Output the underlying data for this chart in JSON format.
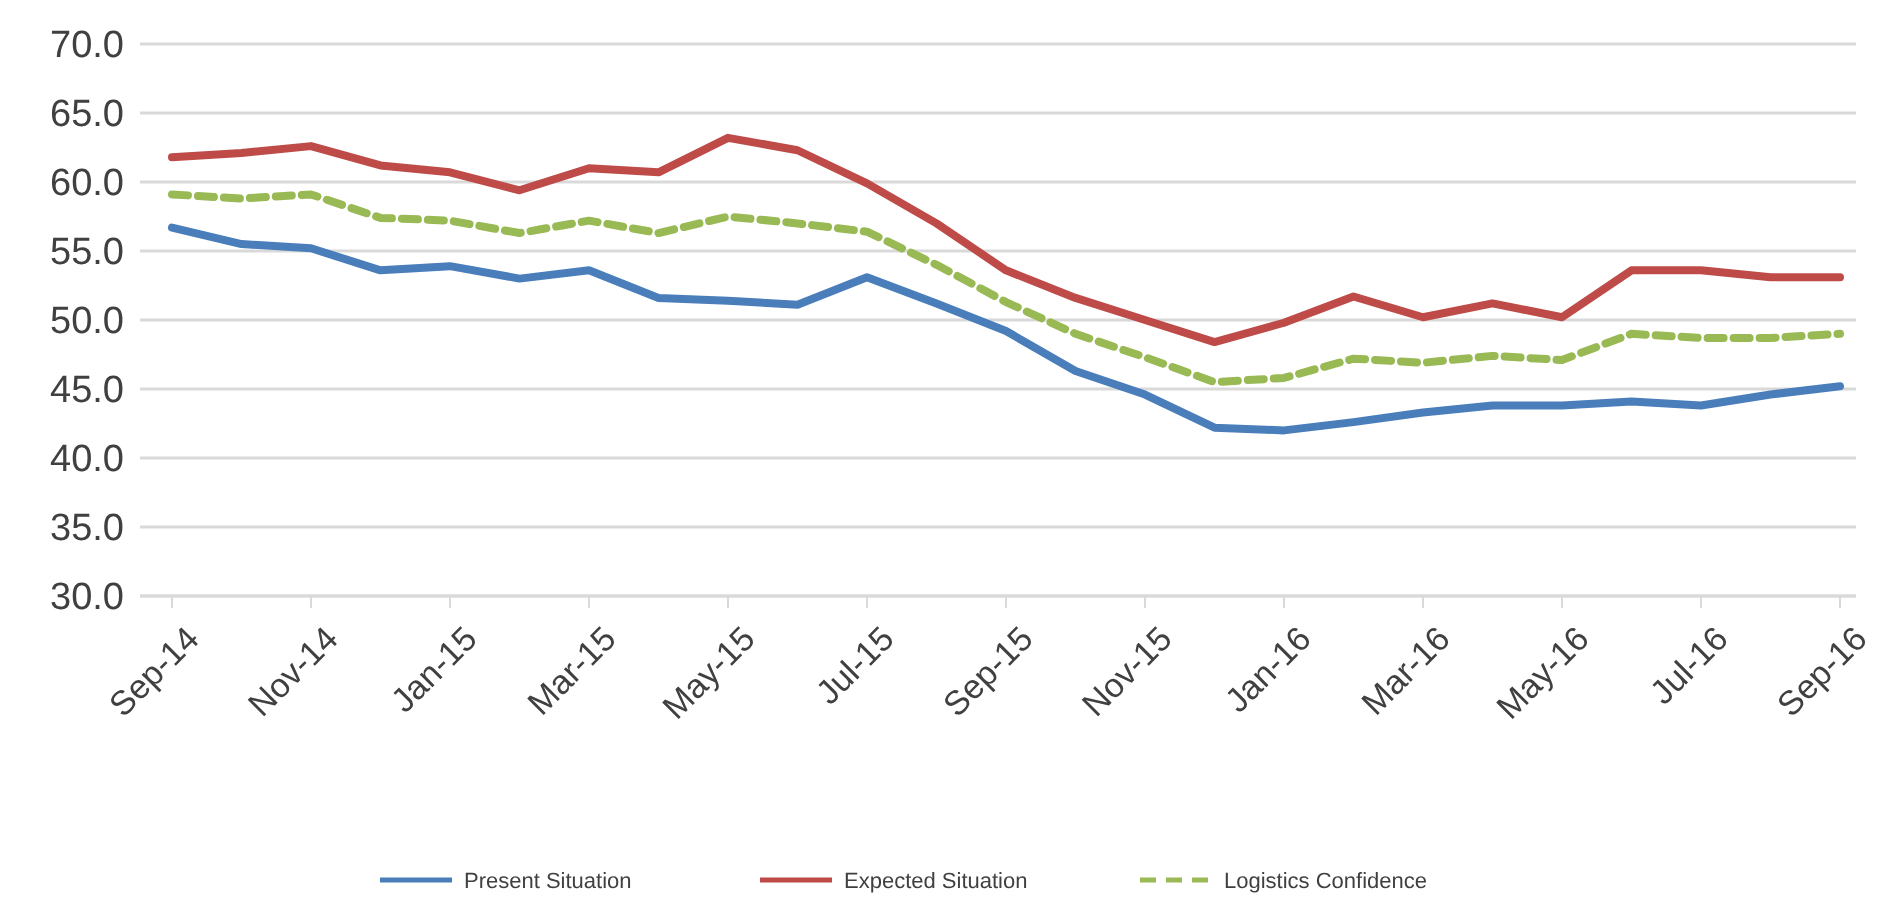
{
  "chart_data": {
    "type": "line",
    "categories": [
      "Sep-14",
      null,
      "Nov-14",
      null,
      "Jan-15",
      null,
      "Mar-15",
      null,
      "May-15",
      null,
      "Jul-15",
      null,
      "Sep-15",
      null,
      "Nov-15",
      null,
      "Jan-16",
      null,
      "Mar-16",
      null,
      "May-16",
      null,
      "Jul-16",
      null,
      "Sep-16"
    ],
    "series": [
      {
        "name": "Present Situation",
        "color": "#4a7ebb",
        "values": [
          56.7,
          55.5,
          55.2,
          53.6,
          53.9,
          53.0,
          53.6,
          51.6,
          51.4,
          51.1,
          53.1,
          51.2,
          49.2,
          46.3,
          44.6,
          42.2,
          42.0,
          42.6,
          43.3,
          43.8,
          43.8,
          44.1,
          43.8,
          44.6,
          45.2
        ]
      },
      {
        "name": "Expected Situation",
        "color": "#be4b48",
        "values": [
          61.8,
          62.1,
          62.6,
          61.2,
          60.7,
          59.4,
          61.0,
          60.7,
          63.2,
          62.3,
          59.9,
          57.0,
          53.6,
          51.6,
          50.0,
          48.4,
          49.8,
          51.7,
          50.2,
          51.2,
          50.2,
          53.6,
          53.6,
          53.1,
          53.1
        ]
      },
      {
        "name": "Logistics Confidence",
        "color": "#98b954",
        "line_style": "dashed",
        "values": [
          59.1,
          58.8,
          59.1,
          57.4,
          57.2,
          56.3,
          57.2,
          56.3,
          57.5,
          57.0,
          56.4,
          54.0,
          51.3,
          49.0,
          47.3,
          45.5,
          45.8,
          47.2,
          46.9,
          47.4,
          47.1,
          49.0,
          48.7,
          48.7,
          49.0
        ]
      }
    ],
    "ylim": [
      30,
      70
    ],
    "yticks": [
      {
        "value": 30,
        "label": "30.0"
      },
      {
        "value": 35,
        "label": "35.0"
      },
      {
        "value": 40,
        "label": "40.0"
      },
      {
        "value": 45,
        "label": "45.0"
      },
      {
        "value": 50,
        "label": "50.0"
      },
      {
        "value": 55,
        "label": "55.0"
      },
      {
        "value": 60,
        "label": "60.0"
      },
      {
        "value": 65,
        "label": "65.0"
      },
      {
        "value": 70,
        "label": "70.0"
      }
    ],
    "grid": "y",
    "legend": "bottom"
  }
}
